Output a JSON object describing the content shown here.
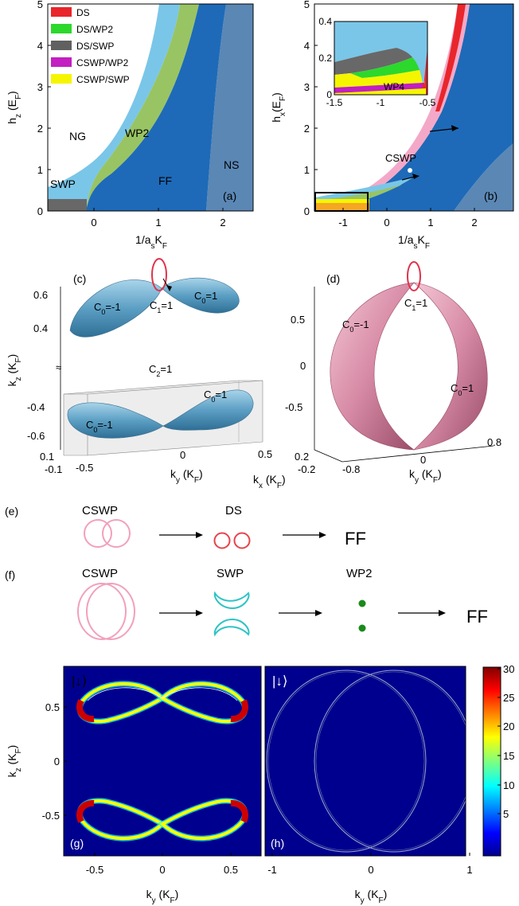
{
  "panel_a": {
    "letter": "(a)",
    "ylabel": "h_z (E_F)",
    "xlabel": "1/a_s K_F",
    "yticks": [
      "0",
      "1",
      "2",
      "3",
      "4",
      "5"
    ],
    "xticks": [
      "0",
      "1",
      "2"
    ],
    "legend": [
      {
        "label": "DS",
        "color": "#e8262b"
      },
      {
        "label": "DS/WP2",
        "color": "#2cd82c"
      },
      {
        "label": "DS/SWP",
        "color": "#606060"
      },
      {
        "label": "CSWP/WP2",
        "color": "#c21ec2"
      },
      {
        "label": "CSWP/SWP",
        "color": "#f5f500"
      }
    ],
    "regions": {
      "NG": "NG",
      "SWP": "SWP",
      "WP2": "WP2",
      "FF": "FF",
      "NS": "NS"
    }
  },
  "panel_b": {
    "letter": "(b)",
    "ylabel": "h_x(E_F)",
    "xlabel": "1/a_s K_F",
    "yticks": [
      "0",
      "1",
      "2",
      "3",
      "4",
      "5"
    ],
    "xticks": [
      "-1",
      "0",
      "1",
      "2"
    ],
    "annotation": "CSWP",
    "inset": {
      "yticks": [
        "0",
        "0.2",
        "0.4"
      ],
      "xticks": [
        "-1.5",
        "-1",
        "-0.5"
      ],
      "label": "WP4"
    }
  },
  "panel_c": {
    "letter": "(c)",
    "ylabel": "k_z (K_F)",
    "zticks_top": [
      "0.6",
      "0.4"
    ],
    "zticks_bottom": [
      "-0.4",
      "-0.6"
    ],
    "break_symbol": "≈",
    "kx_ticks": [
      "0.1",
      "-0.1"
    ],
    "ky_ticks": [
      "-0.5",
      "0",
      "0.5"
    ],
    "kylabel": "k_y (K_F)",
    "kxlabel": "k_x (K_F)",
    "labels": {
      "c0_left_top": "C_0=-1",
      "c0_right_top": "C_0=1",
      "c1": "C_1=1",
      "c2": "C_2=1",
      "c0_right_bottom": "C_0=1",
      "c0_left_bottom": "C_0=-1"
    }
  },
  "panel_d": {
    "letter": "(d)",
    "zticks": [
      "0.5",
      "0",
      "-0.5"
    ],
    "kx_ticks": [
      "0.2",
      "-0.2"
    ],
    "ky_ticks": [
      "-0.8",
      "0",
      "0.8"
    ],
    "kylabel": "k_y (K_F)",
    "labels": {
      "c0_left": "C_0=-1",
      "c1": "C_1=1",
      "c0_right": "C_0=1"
    }
  },
  "panel_e": {
    "letter": "(e)",
    "stages": [
      "CSWP",
      "DS",
      "FF"
    ]
  },
  "panel_f": {
    "letter": "(f)",
    "stages": [
      "CSWP",
      "SWP",
      "WP2",
      "FF"
    ]
  },
  "panel_g": {
    "letter": "(g)",
    "state": "|↓⟩",
    "ylabel": "k_z (K_F)",
    "xlabel": "k_y (K_F)",
    "yticks": [
      "0.5",
      "0",
      "-0.5"
    ],
    "xticks": [
      "-0.5",
      "0",
      "0.5"
    ]
  },
  "panel_h": {
    "letter": "(h)",
    "state": "|↓⟩",
    "xlabel": "k_y (K_F)",
    "xticks": [
      "-1",
      "0",
      "1"
    ]
  },
  "colorbar": {
    "ticks": [
      "30",
      "25",
      "20",
      "15",
      "10",
      "5"
    ]
  }
}
